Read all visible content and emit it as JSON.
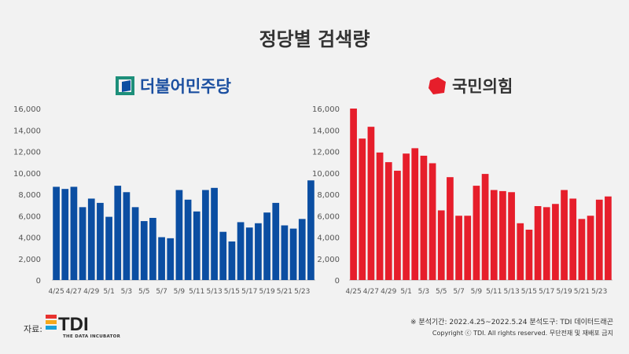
{
  "title": "정당별 검색량",
  "source_label": "자료:",
  "brand_sub": "THE DATA INCUBATOR",
  "brand_name": "TDI",
  "note_period": "※ 분석기간: 2022.4.25~2022.5.24  분석도구: TDI 데이터드래곤",
  "note_copyright": "Copyright ⓒ TDI. All rights reserved. 무단전재 및 재배포 금지",
  "chart_data": [
    {
      "type": "bar",
      "title": "더불어민주당",
      "color": "#0b4ea2",
      "ylim": [
        0,
        16000
      ],
      "yticks": [
        "0",
        "2,000",
        "4,000",
        "6,000",
        "8,000",
        "10,000",
        "12,000",
        "14,000",
        "16,000"
      ],
      "xticks": [
        "4/25",
        "4/27",
        "4/29",
        "5/1",
        "5/3",
        "5/5",
        "5/7",
        "5/9",
        "5/11",
        "5/13",
        "5/15",
        "5/17",
        "5/19",
        "5/21",
        "5/23"
      ],
      "values": [
        8700,
        8500,
        8700,
        6800,
        7600,
        7200,
        5900,
        8800,
        8200,
        6800,
        5500,
        5800,
        4000,
        3900,
        8400,
        7500,
        6400,
        8400,
        8600,
        4500,
        3600,
        5400,
        4900,
        5300,
        6300,
        7200,
        5100,
        4800,
        5700,
        9300
      ]
    },
    {
      "type": "bar",
      "title": "국민의힘",
      "color": "#e61e2b",
      "ylim": [
        0,
        16000
      ],
      "yticks": [
        "0",
        "2,000",
        "4,000",
        "6,000",
        "8,000",
        "10,000",
        "12,000",
        "14,000",
        "16,000"
      ],
      "xticks": [
        "4/25",
        "4/27",
        "4/29",
        "5/1",
        "5/3",
        "5/5",
        "5/7",
        "5/9",
        "5/11",
        "5/13",
        "5/15",
        "5/17",
        "5/19",
        "5/21",
        "5/23"
      ],
      "values": [
        16000,
        13200,
        14300,
        11900,
        11000,
        10200,
        11800,
        12300,
        11600,
        10900,
        6500,
        9600,
        6000,
        6000,
        8800,
        9900,
        8400,
        8300,
        8200,
        5300,
        4700,
        6900,
        6800,
        7100,
        8400,
        7600,
        5700,
        6000,
        7500,
        7800
      ]
    }
  ]
}
